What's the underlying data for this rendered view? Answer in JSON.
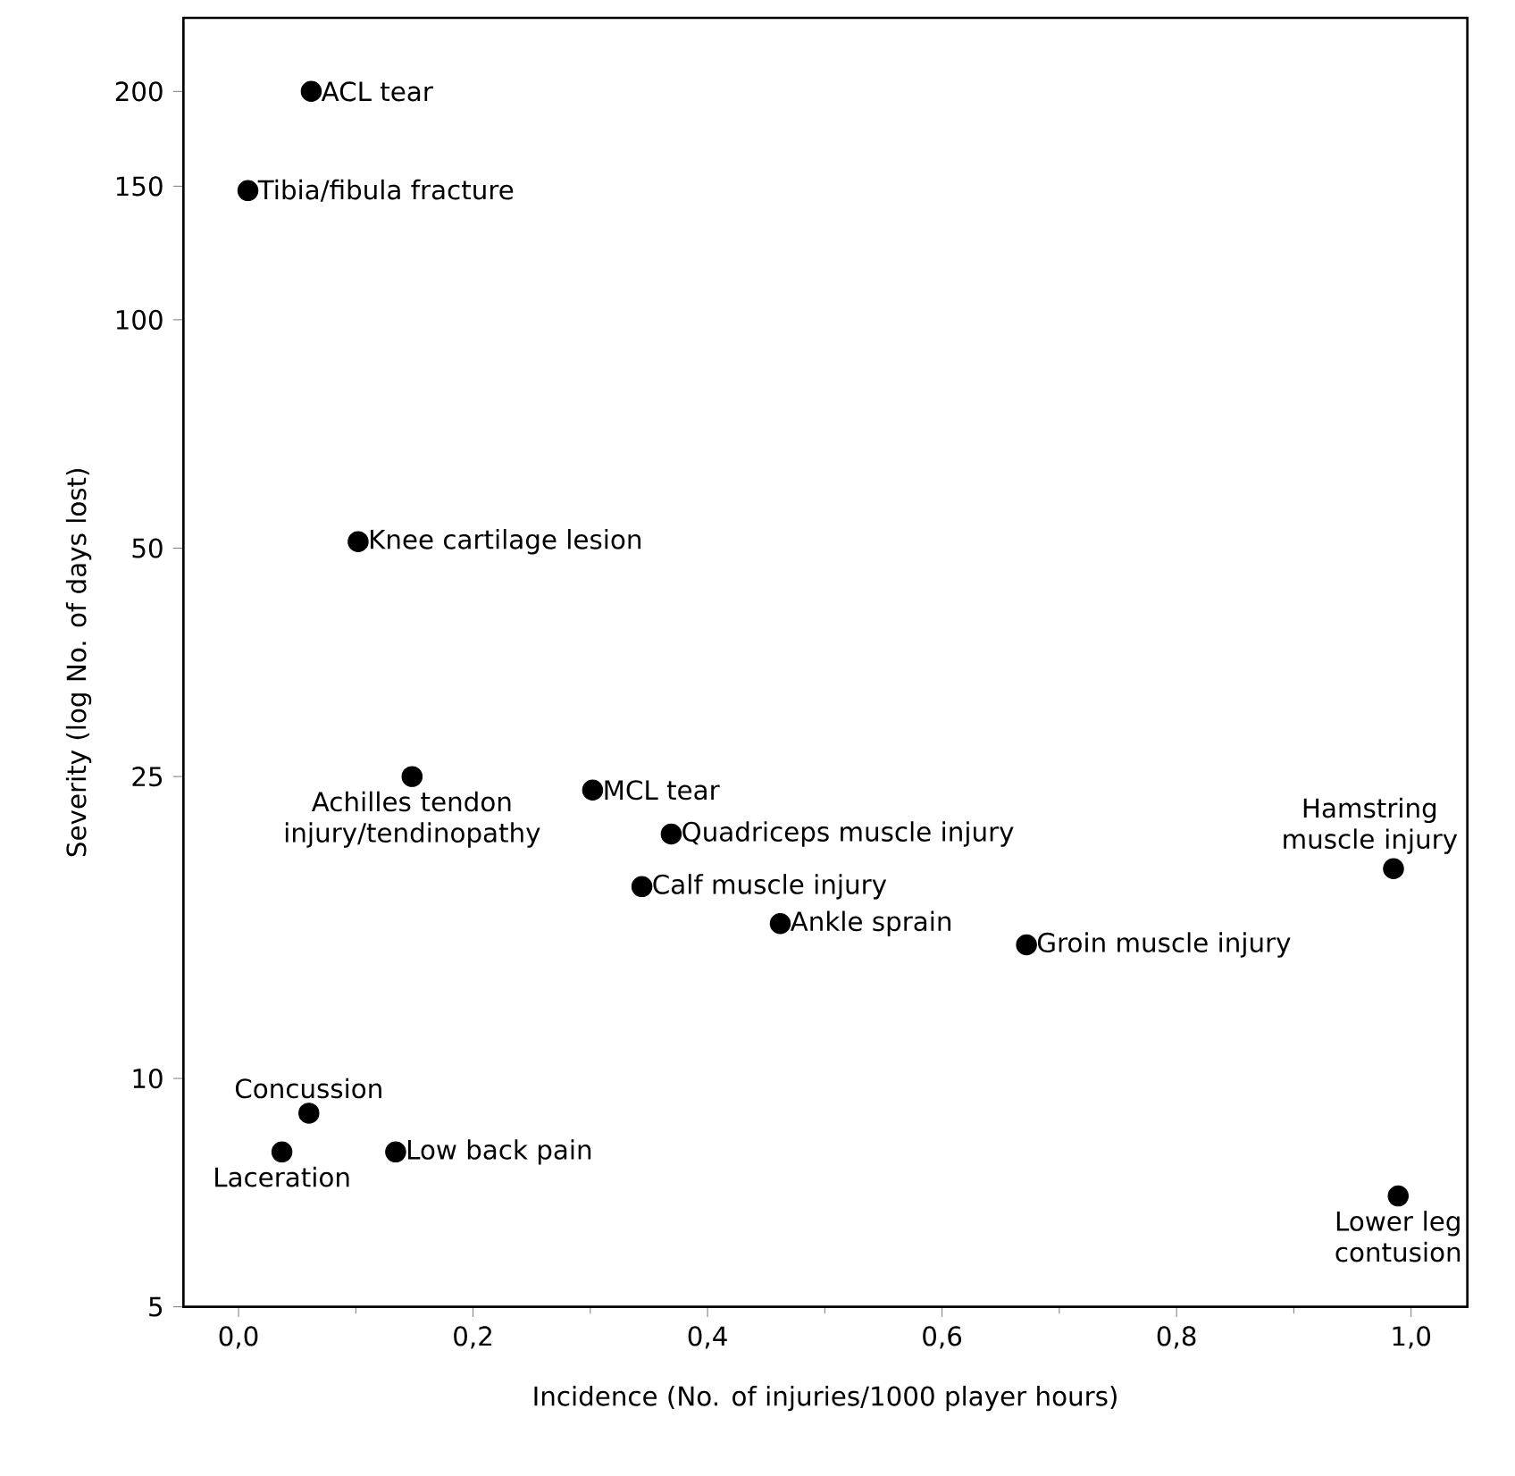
{
  "chart_data": {
    "type": "scatter",
    "xlabel": "Incidence (No. of injuries/1000 player hours)",
    "ylabel": "Severity (log No. of days lost)",
    "log": "y",
    "marker": "circle",
    "grid": false,
    "xlim": [
      -0.047,
      1.048
    ],
    "ylim": [
      5,
      250
    ],
    "xticks": [
      {
        "value": 0,
        "label": "0,0"
      },
      {
        "value": 0.2,
        "label": "0,2"
      },
      {
        "value": 0.4,
        "label": "0,4"
      },
      {
        "value": 0.6,
        "label": "0,6"
      },
      {
        "value": 0.8,
        "label": "0,8"
      },
      {
        "value": 1.0,
        "label": "1,0"
      }
    ],
    "yticks": [
      5,
      10,
      25,
      50,
      100,
      150,
      200
    ],
    "series": [
      {
        "color": "#000000",
        "x": [
          0.062,
          0.008,
          0.102,
          0.148,
          0.302,
          0.369,
          0.344,
          0.462,
          0.672,
          0.985,
          0.06,
          0.037,
          0.134,
          0.989
        ],
        "values": [
          200,
          148,
          51,
          25,
          24,
          21,
          17.9,
          16,
          15,
          18.9,
          9,
          8,
          8,
          7
        ]
      }
    ],
    "annotations": [
      {
        "text": "ACL tear",
        "x": 0.062,
        "y": 200
      },
      {
        "text": "Tibia/fibula fracture",
        "x": 0.008,
        "y": 148
      },
      {
        "text": "Knee cartilage lesion",
        "x": 0.102,
        "y": 51
      },
      {
        "text": "Achilles tendon injury/tendinopathy",
        "x": 0.148,
        "y": 25
      },
      {
        "text": "MCL tear",
        "x": 0.302,
        "y": 24
      },
      {
        "text": "Quadriceps muscle injury",
        "x": 0.369,
        "y": 21
      },
      {
        "text": "Calf muscle injury",
        "x": 0.344,
        "y": 17.9
      },
      {
        "text": "Ankle sprain",
        "x": 0.462,
        "y": 16
      },
      {
        "text": "Groin muscle injury",
        "x": 0.672,
        "y": 15
      },
      {
        "text": "Hamstring muscle injury",
        "x": 0.985,
        "y": 18.9
      },
      {
        "text": "Concussion",
        "x": 0.06,
        "y": 9
      },
      {
        "text": "Laceration",
        "x": 0.037,
        "y": 8
      },
      {
        "text": "Low back pain",
        "x": 0.134,
        "y": 8
      },
      {
        "text": "Lower leg contusion",
        "x": 0.989,
        "y": 7
      }
    ]
  }
}
